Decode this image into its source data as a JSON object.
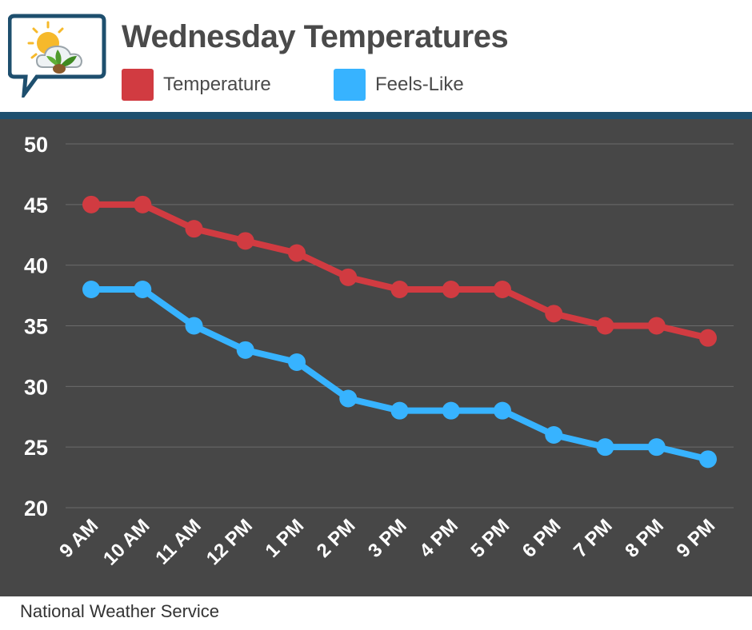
{
  "header": {
    "title": "Wednesday Temperatures",
    "logo_icon": "weather-sun-cloud-leaf-icon"
  },
  "legend": [
    {
      "label": "Temperature",
      "color": "#d13b41"
    },
    {
      "label": "Feels-Like",
      "color": "#37b3ff"
    }
  ],
  "footer": {
    "source": "National Weather Service"
  },
  "chart_data": {
    "type": "line",
    "title": "Wednesday Temperatures",
    "xlabel": "",
    "ylabel": "",
    "categories": [
      "9 AM",
      "10 AM",
      "11 AM",
      "12 PM",
      "1 PM",
      "2 PM",
      "3 PM",
      "4 PM",
      "5 PM",
      "6 PM",
      "7 PM",
      "8 PM",
      "9 PM"
    ],
    "ylim": [
      20,
      50
    ],
    "yticks": [
      "20",
      "25",
      "30",
      "35",
      "40",
      "45",
      "50"
    ],
    "grid": true,
    "legend_position": "top",
    "series": [
      {
        "name": "Temperature",
        "color": "#d13b41",
        "values": [
          45,
          45,
          43,
          42,
          41,
          39,
          38,
          38,
          38,
          36,
          35,
          35,
          34
        ]
      },
      {
        "name": "Feels-Like",
        "color": "#37b3ff",
        "values": [
          38,
          38,
          35,
          33,
          32,
          29,
          28,
          28,
          28,
          26,
          25,
          25,
          24
        ]
      }
    ]
  }
}
